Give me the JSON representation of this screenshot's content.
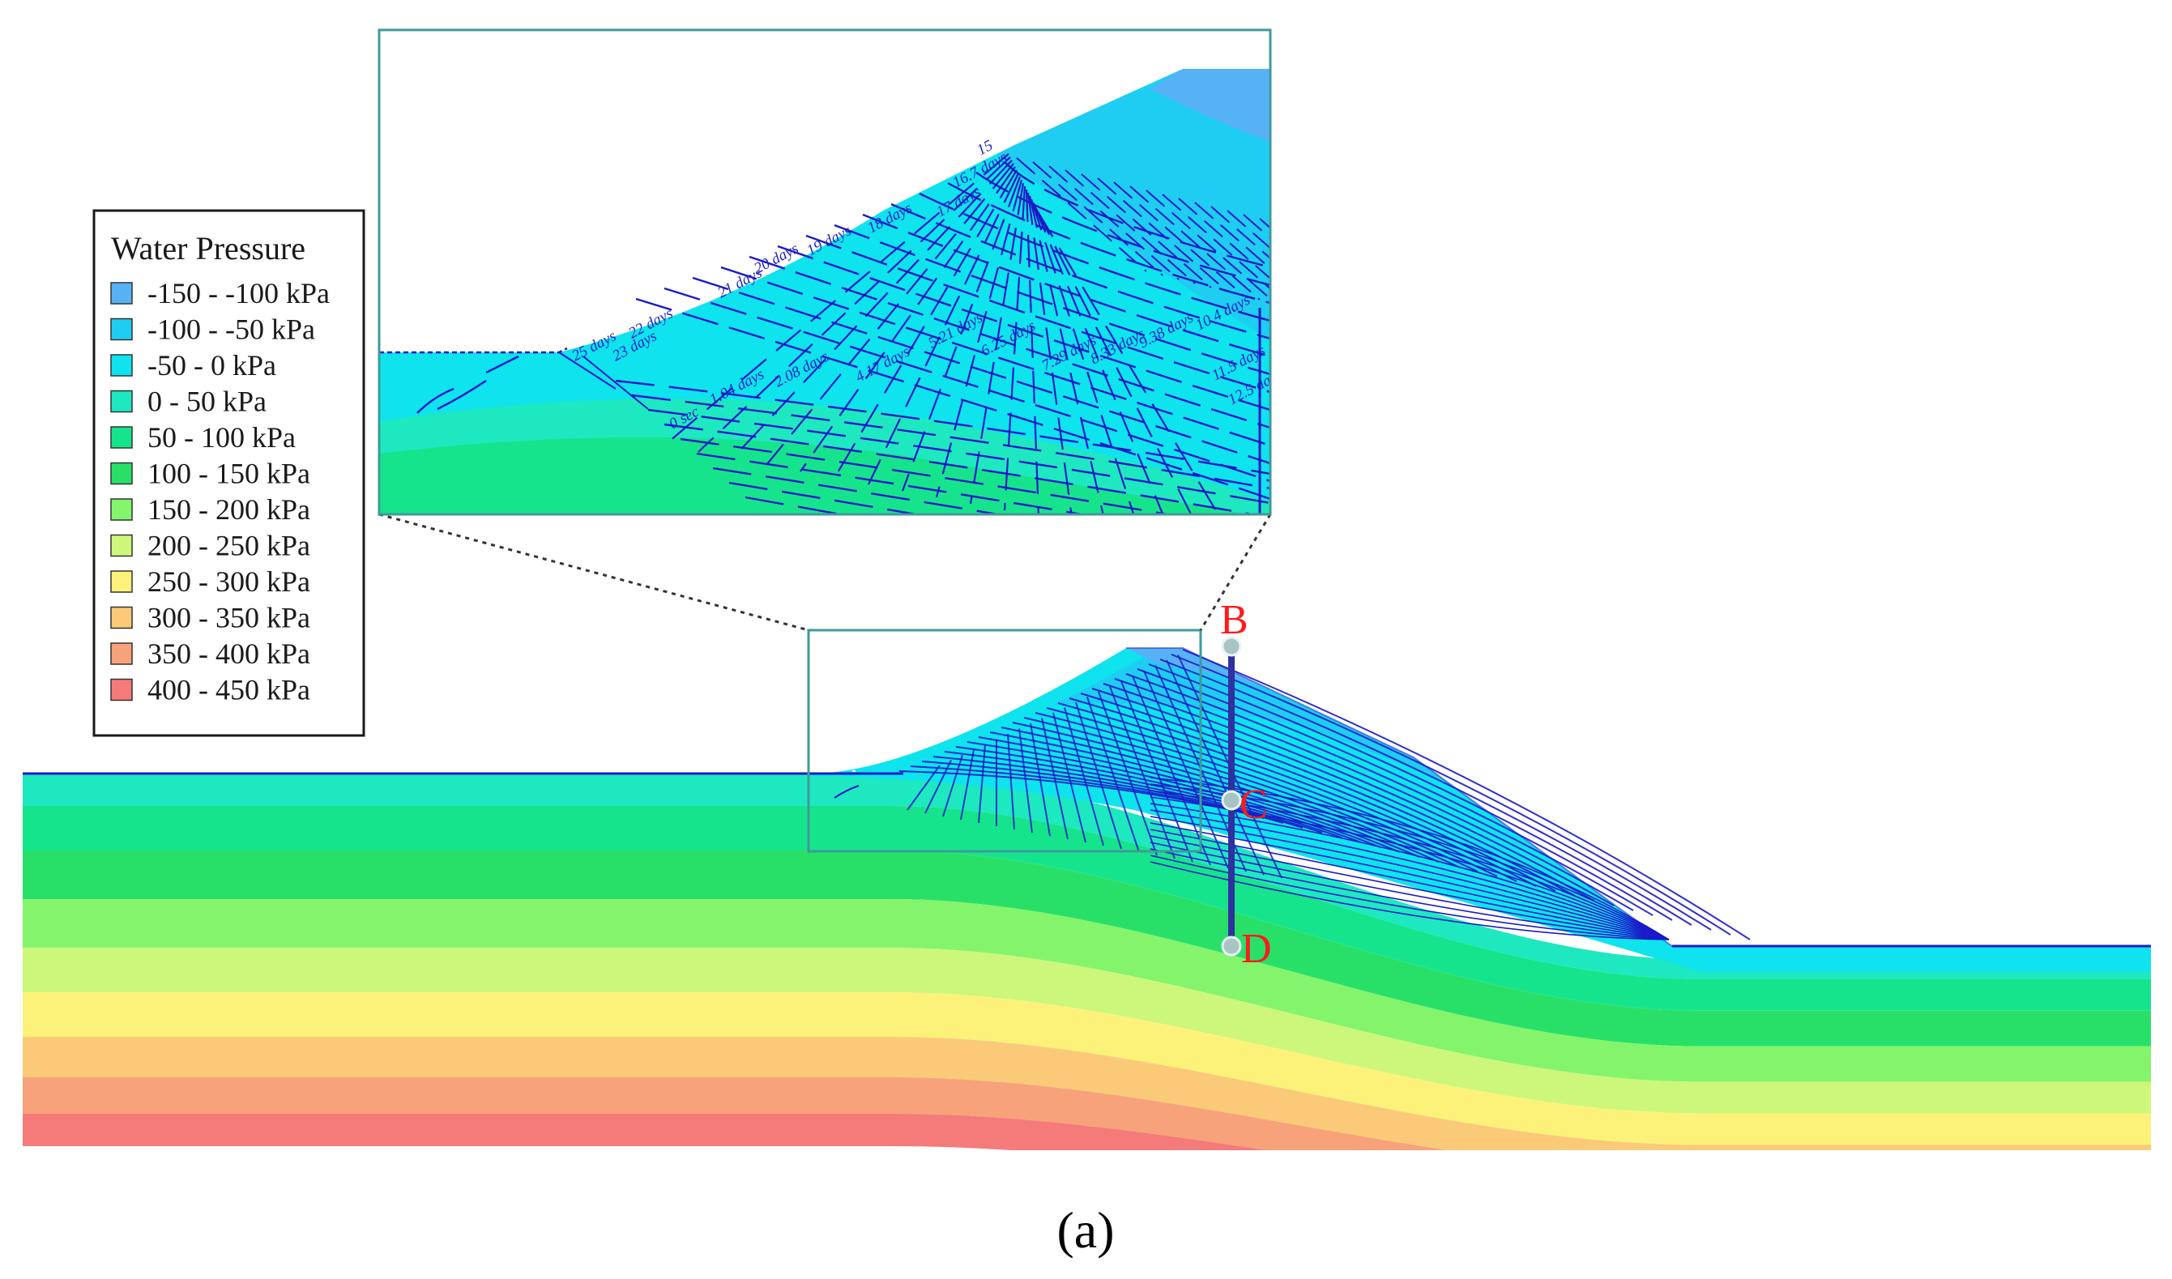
{
  "legend": {
    "title": "Water Pressure",
    "items": [
      {
        "label": "-150 - -100 kPa",
        "color": "#56b2f5"
      },
      {
        "label": "-100 - -50 kPa",
        "color": "#1fcdf2"
      },
      {
        "label": "-50 - 0 kPa",
        "color": "#0ee3ee"
      },
      {
        "label": "0 - 50 kPa",
        "color": "#1ee8c0"
      },
      {
        "label": "50 - 100 kPa",
        "color": "#16e48c"
      },
      {
        "label": "100 - 150 kPa",
        "color": "#28e068"
      },
      {
        "label": "150 - 200 kPa",
        "color": "#84f46c"
      },
      {
        "label": "200 - 250 kPa",
        "color": "#cdf77a"
      },
      {
        "label": "250 - 300 kPa",
        "color": "#fcf27a"
      },
      {
        "label": "300 - 350 kPa",
        "color": "#fbca78"
      },
      {
        "label": "350 - 400 kPa",
        "color": "#f7a27a"
      },
      {
        "label": "400 - 450 kPa",
        "color": "#f57a7a"
      }
    ]
  },
  "section_points": [
    {
      "label": "B"
    },
    {
      "label": "C"
    },
    {
      "label": "D"
    }
  ],
  "time_labels": [
    "15",
    "16.7 days",
    "17 days",
    "18 days",
    "19 days",
    "20 days",
    "21 days",
    "22 days",
    "23 days",
    "25 days",
    "2.08 days",
    "1.04 days",
    "0 sec",
    "4.17 days",
    "5.21 days",
    "6.25 days",
    "7.29 days",
    "8.33 days",
    "9.38 days",
    "10.4 days",
    "11.5 days",
    "12.5 days"
  ],
  "caption": "(a)",
  "colors": {
    "zoom_frame": "#3f9a9a",
    "section_line": "#3030a0",
    "grid_lines": "#1a1ac8",
    "water_table": "#1a1ac8"
  }
}
